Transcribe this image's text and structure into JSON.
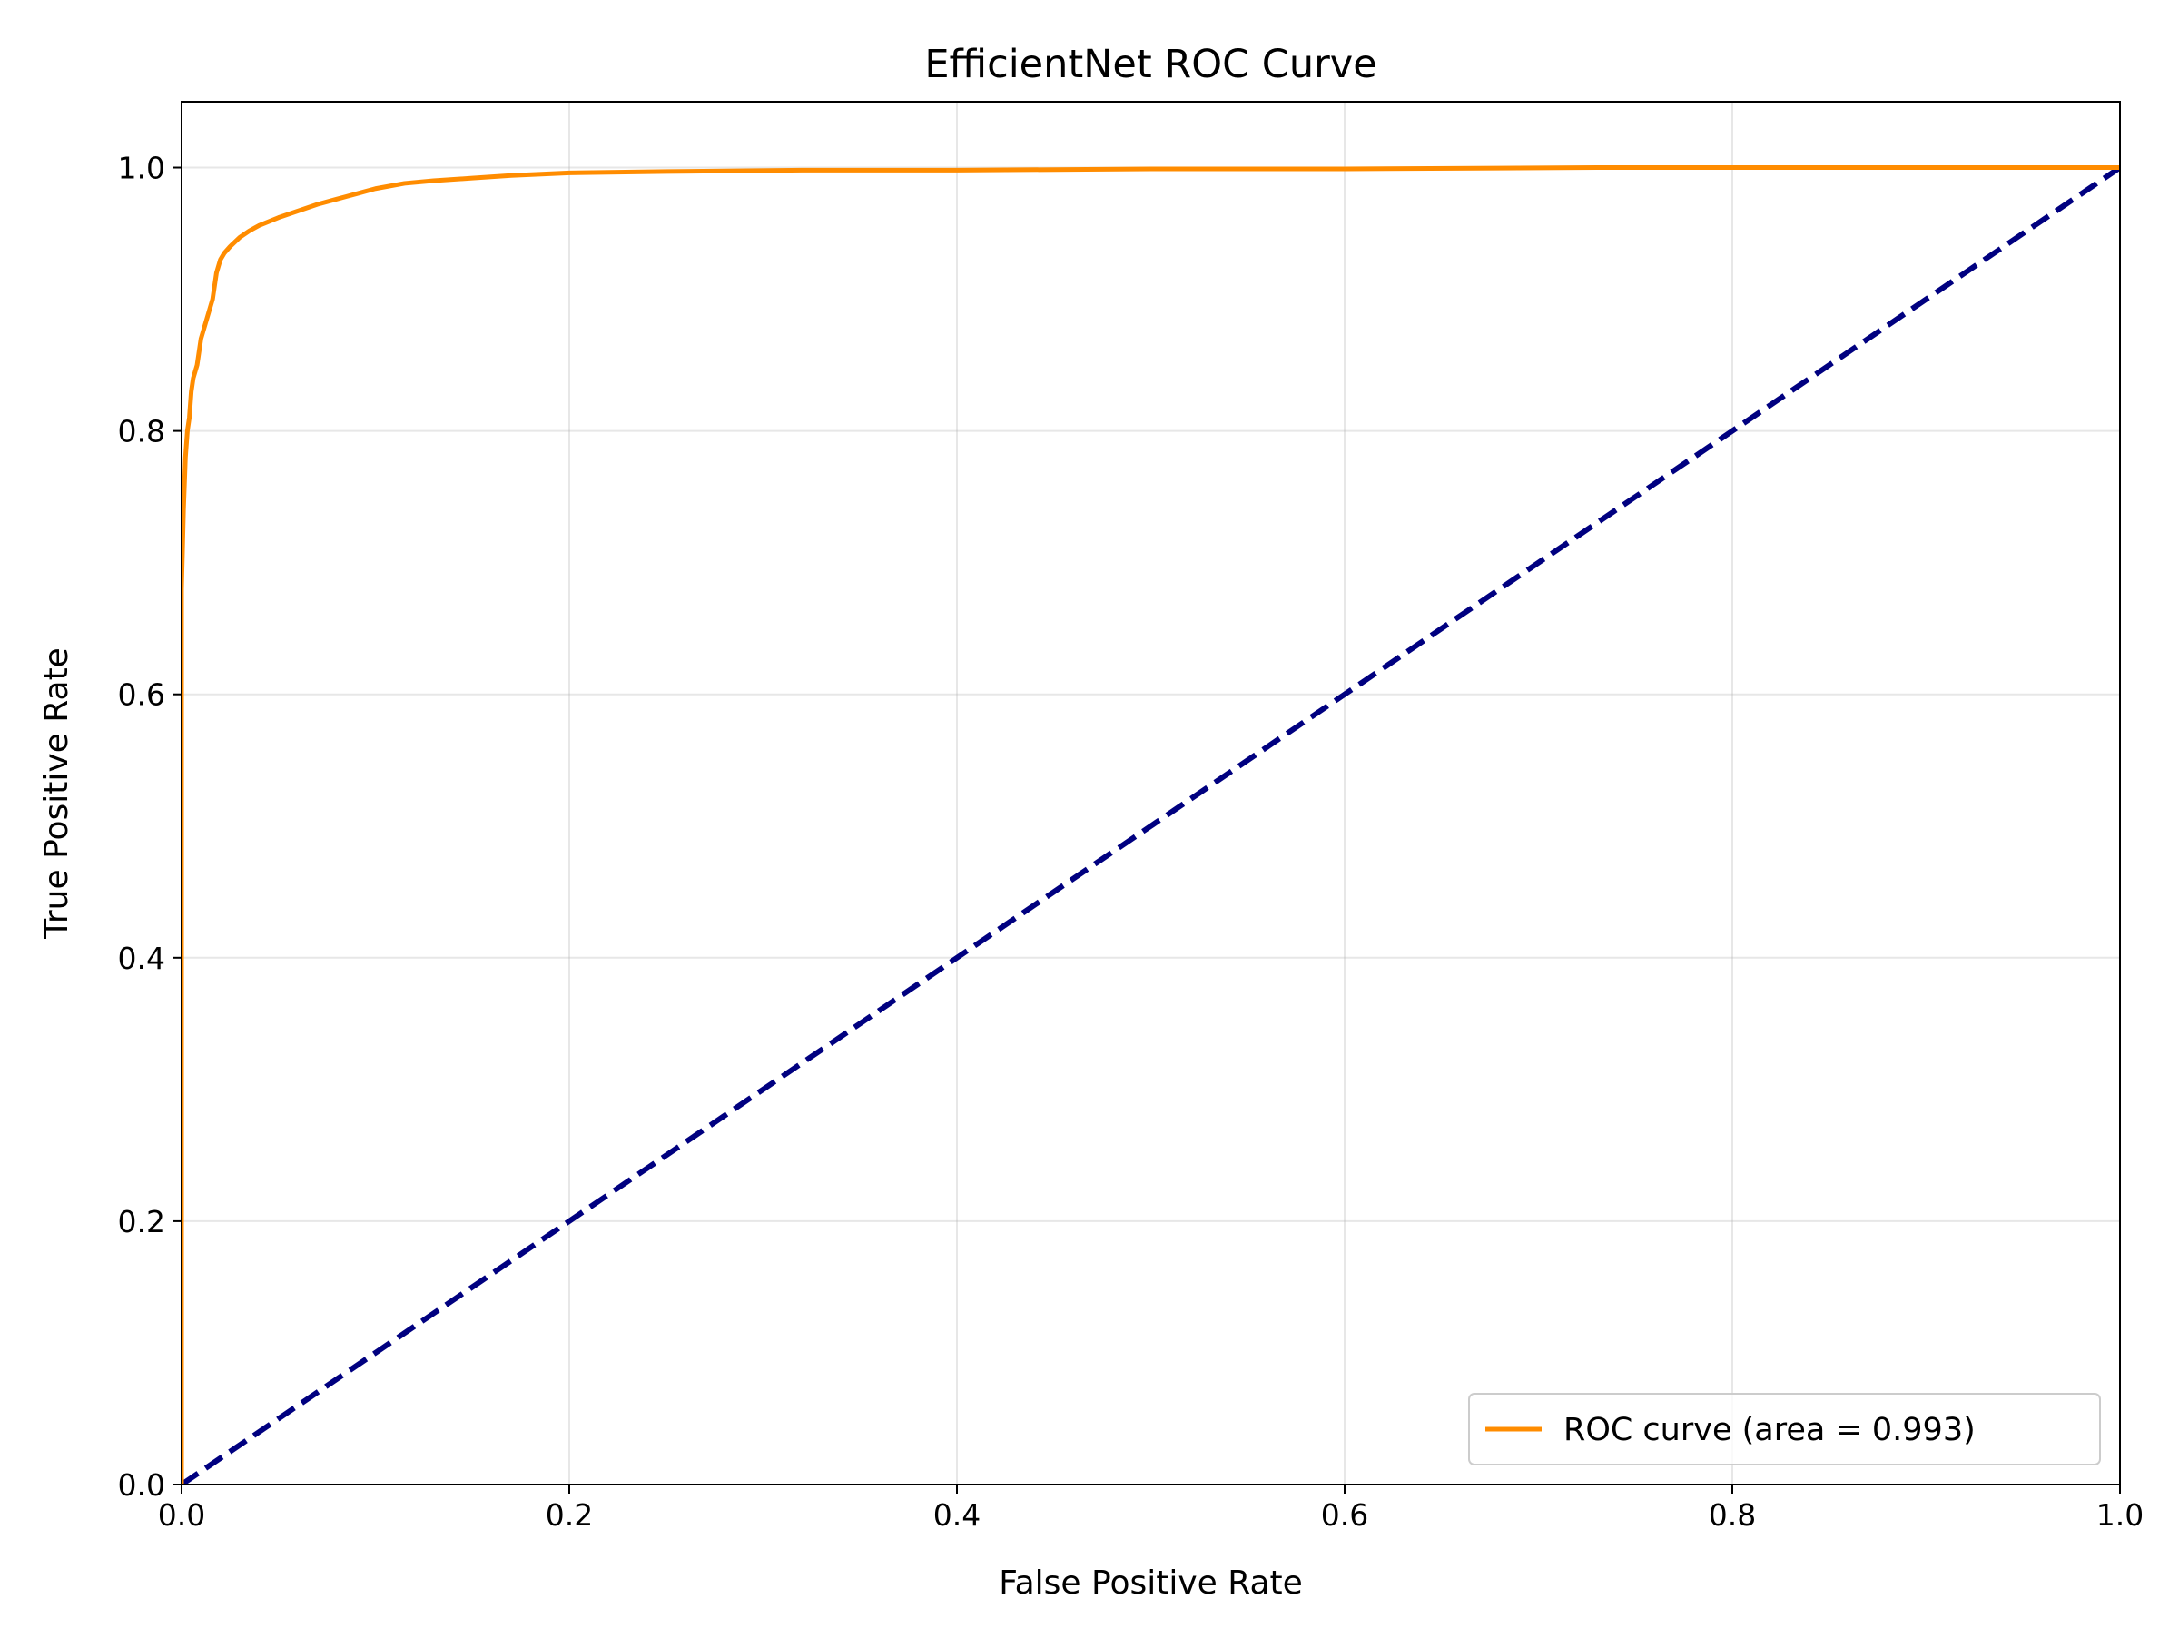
{
  "chart_data": {
    "type": "line",
    "title": "EfficientNet ROC Curve",
    "xlabel": "False Positive Rate",
    "ylabel": "True Positive Rate",
    "xlim": [
      0.0,
      1.0
    ],
    "ylim": [
      0.0,
      1.05
    ],
    "xticks": [
      0.0,
      0.2,
      0.4,
      0.6,
      0.8,
      1.0
    ],
    "xtick_labels": [
      "0.0",
      "0.2",
      "0.4",
      "0.6",
      "0.8",
      "1.0"
    ],
    "yticks": [
      0.0,
      0.2,
      0.4,
      0.6,
      0.8,
      1.0
    ],
    "ytick_labels": [
      "0.0",
      "0.2",
      "0.4",
      "0.6",
      "0.8",
      "1.0"
    ],
    "grid": true,
    "legend_position": "lower-right",
    "series": [
      {
        "name": "ROC curve (area = 0.993)",
        "color": "#ff8c00",
        "style": "solid",
        "x": [
          0.0,
          0.0,
          0.001,
          0.002,
          0.003,
          0.004,
          0.005,
          0.006,
          0.008,
          0.01,
          0.012,
          0.014,
          0.016,
          0.018,
          0.02,
          0.022,
          0.025,
          0.03,
          0.035,
          0.04,
          0.05,
          0.06,
          0.07,
          0.08,
          0.09,
          0.1,
          0.115,
          0.13,
          0.15,
          0.17,
          0.2,
          0.25,
          0.32,
          0.4,
          0.5,
          0.6,
          0.73,
          0.85,
          1.0
        ],
        "y": [
          0.0,
          0.68,
          0.74,
          0.78,
          0.8,
          0.81,
          0.83,
          0.84,
          0.85,
          0.87,
          0.88,
          0.89,
          0.9,
          0.92,
          0.93,
          0.935,
          0.94,
          0.947,
          0.952,
          0.956,
          0.962,
          0.967,
          0.972,
          0.976,
          0.98,
          0.984,
          0.988,
          0.99,
          0.992,
          0.994,
          0.996,
          0.997,
          0.998,
          0.998,
          0.999,
          0.999,
          1.0,
          1.0,
          1.0
        ]
      },
      {
        "name": "",
        "color": "#000080",
        "style": "dashed",
        "x": [
          0.0,
          1.0
        ],
        "y": [
          0.0,
          1.0
        ]
      }
    ],
    "legend": [
      {
        "label": "ROC curve (area = 0.993)",
        "color": "#ff8c00"
      }
    ]
  }
}
